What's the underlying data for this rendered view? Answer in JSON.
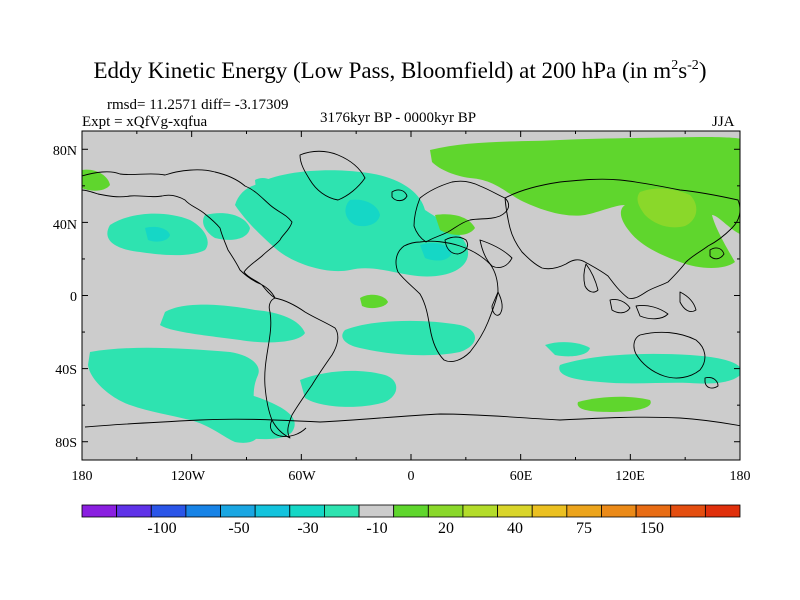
{
  "title": {
    "main": "Eddy Kinetic Energy (Low Pass, Bloomfield) at 200 hPa (in m",
    "sup1": "2",
    "mid": "s",
    "sup2": "-2",
    "end": ")"
  },
  "stats": "rmsd= 11.2571 diff= -3.17309",
  "experiment": "Expt = xQfVg-xqfua",
  "period": "3176kyr BP - 0000kyr BP",
  "season": "JJA",
  "y_ticks": [
    "80N",
    "40N",
    "0",
    "40S",
    "80S"
  ],
  "x_ticks": [
    "180",
    "120W",
    "60W",
    "0",
    "60E",
    "120E",
    "180"
  ],
  "colorbar": {
    "labels": [
      "-100",
      "-50",
      "-30",
      "-10",
      "20",
      "40",
      "75",
      "150"
    ],
    "colors": [
      "#8a1fe0",
      "#5f32e8",
      "#2a55e8",
      "#1783e6",
      "#1aa6e2",
      "#13c3dd",
      "#15d7c6",
      "#2ee3b0",
      "#cccccc",
      "#5fd62d",
      "#8ad82a",
      "#b3dc2a",
      "#d9d52a",
      "#ebc021",
      "#eca41c",
      "#eb8a18",
      "#e86c14",
      "#e44e10",
      "#e0300c"
    ]
  },
  "map_colors": {
    "background": "#cccccc",
    "negative": "#2ee3b0",
    "negative_strong": "#15d7c6",
    "positive": "#5fd62d",
    "positive_strong": "#8ad82a",
    "coast": "#000000"
  }
}
